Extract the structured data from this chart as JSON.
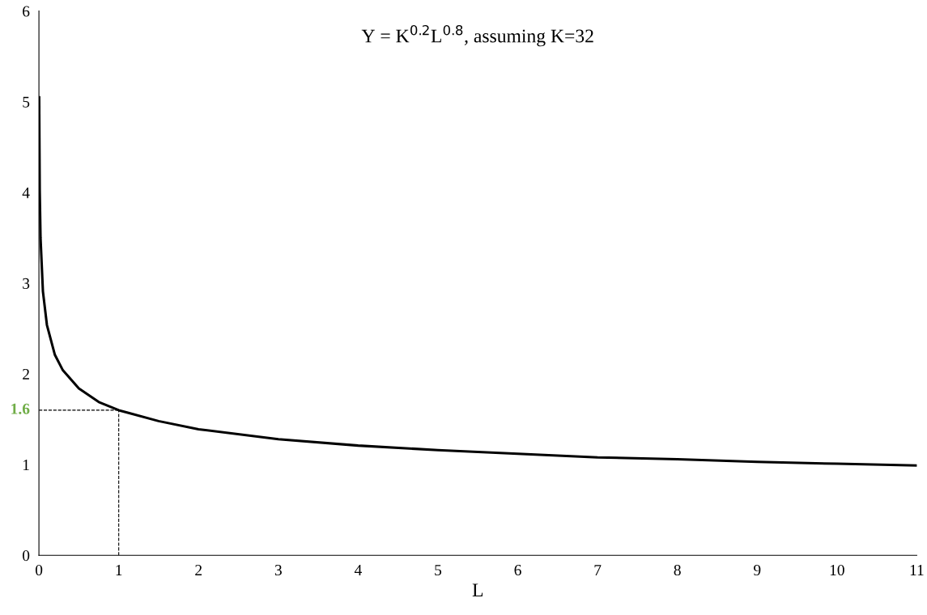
{
  "chart_data": {
    "type": "line",
    "title": "Y = K$^{0.2}$L$^{0.8}$, assuming K=32",
    "xlabel": "L",
    "x": [
      0.003,
      0.01,
      0.02,
      0.05,
      0.1,
      0.2,
      0.3,
      0.5,
      0.75,
      1,
      1.5,
      2,
      3,
      4,
      5,
      6,
      7,
      8,
      9,
      10,
      11
    ],
    "series": [
      {
        "color": "#000000",
        "values": [
          5.05,
          4.02,
          3.5,
          2.91,
          2.54,
          2.21,
          2.04,
          1.84,
          1.69,
          1.6,
          1.48,
          1.39,
          1.28,
          1.21,
          1.16,
          1.12,
          1.08,
          1.06,
          1.03,
          1.01,
          0.99
        ]
      }
    ],
    "xlim": [
      0,
      11
    ],
    "xticks": [
      0,
      1,
      2,
      3,
      4,
      5,
      6,
      7,
      8,
      9,
      10,
      11
    ],
    "ylim": [
      0,
      6
    ],
    "yticks": [
      0,
      1,
      2,
      3,
      4,
      5,
      6
    ],
    "ref_lines": [
      {
        "axis": "x",
        "value": 1,
        "line_style": "dashed",
        "color": "#000000"
      },
      {
        "axis": "y",
        "value": 1.6,
        "label": "1.6",
        "line_style": "dashed",
        "color": "#000000"
      }
    ],
    "grid": false,
    "legend": false,
    "marker": "none",
    "line_style": "solid"
  }
}
